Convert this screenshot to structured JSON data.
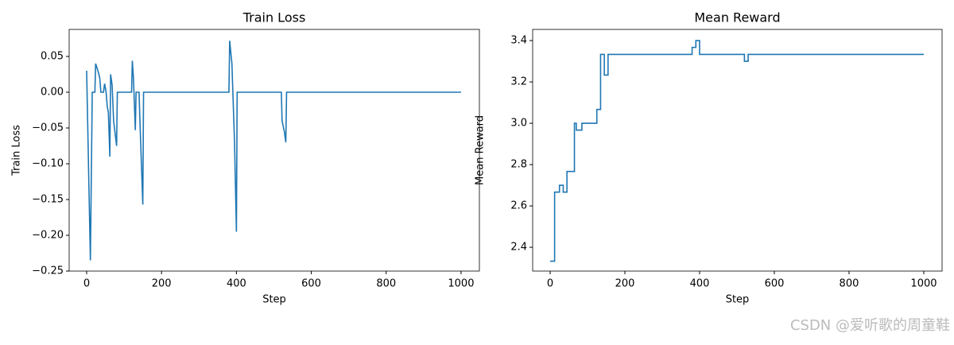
{
  "chart_data": [
    {
      "type": "line",
      "title": "Train Loss",
      "x_label": "Step",
      "y_label": "Train Loss",
      "color": "#1f77b4",
      "x": [
        0,
        10,
        15,
        22,
        24,
        30,
        35,
        38,
        45,
        48,
        52,
        55,
        58,
        62,
        64,
        68,
        72,
        80,
        82,
        120,
        122,
        125,
        130,
        132,
        140,
        142,
        150,
        152,
        380,
        382,
        388,
        395,
        400,
        402,
        520,
        522,
        528,
        532,
        534,
        1000
      ],
      "values": [
        0.03,
        -0.235,
        0,
        0,
        0.04,
        0.03,
        0.02,
        0,
        0,
        0.012,
        0,
        -0.02,
        -0.028,
        -0.09,
        0.025,
        0.01,
        -0.04,
        -0.075,
        0,
        0,
        0.044,
        0.02,
        -0.053,
        0,
        0,
        -0.035,
        -0.157,
        0,
        0,
        0.072,
        0.04,
        -0.07,
        -0.195,
        0,
        0,
        -0.04,
        -0.055,
        -0.07,
        0,
        0
      ],
      "xlim": [
        -46.7,
        1049
      ],
      "ylim": [
        -0.25,
        0.0878
      ],
      "xticks": [
        0,
        200,
        400,
        600,
        800,
        1000
      ],
      "yticks": [
        {
          "value": 0.05,
          "label": "0.05"
        },
        {
          "value": 0,
          "label": "0.00"
        },
        {
          "value": -0.05,
          "label": "−0.05"
        },
        {
          "value": -0.1,
          "label": "−0.10"
        },
        {
          "value": -0.15,
          "label": "−0.15"
        },
        {
          "value": -0.2,
          "label": "−0.20"
        },
        {
          "value": -0.25,
          "label": "−0.25"
        }
      ]
    },
    {
      "type": "line",
      "title": "Mean Reward",
      "x_label": "Step",
      "y_label": "Mean Reward",
      "color": "#1f77b4",
      "x": [
        0,
        12,
        12,
        25,
        25,
        35,
        35,
        45,
        45,
        65,
        65,
        70,
        70,
        85,
        85,
        125,
        125,
        135,
        135,
        145,
        145,
        155,
        155,
        380,
        380,
        390,
        390,
        400,
        400,
        520,
        520,
        530,
        530,
        1000
      ],
      "values": [
        2.333,
        2.333,
        2.667,
        2.667,
        2.7,
        2.7,
        2.667,
        2.667,
        2.767,
        2.767,
        3.0,
        3.0,
        2.967,
        2.967,
        3.0,
        3.0,
        3.067,
        3.067,
        3.333,
        3.333,
        3.233,
        3.233,
        3.333,
        3.333,
        3.367,
        3.367,
        3.4,
        3.4,
        3.333,
        3.333,
        3.3,
        3.3,
        3.333,
        3.333
      ],
      "xlim": [
        -46.8,
        1049
      ],
      "ylim": [
        2.285,
        3.454
      ],
      "xticks": [
        0,
        200,
        400,
        600,
        800,
        1000
      ],
      "yticks": [
        2.4,
        2.6,
        2.8,
        {
          "value": 3.0,
          "label": "3.0"
        },
        3.2,
        3.4
      ]
    }
  ],
  "watermark": "CSDN @爱听歌的周童鞋"
}
